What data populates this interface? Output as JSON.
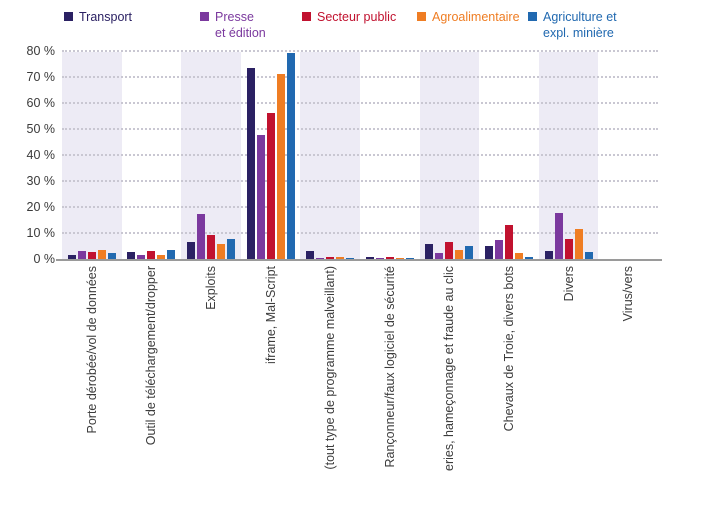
{
  "chart_data": {
    "type": "bar",
    "title": "",
    "xlabel": "",
    "ylabel": "",
    "ylim": [
      0,
      80
    ],
    "ytick_step": 10,
    "grid": "horizontal-dotted",
    "legend_position": "top",
    "stripe_color": "#edebf5",
    "categories": [
      "Porte dérobée/vol de données",
      "Outil de téléchargement/dropper",
      "Exploits",
      "iframe, Mal-Script",
      "(tout type de programme malveillant)",
      "Rançonneur/faux logiciel de sécurité",
      "eries, hameçonnage et fraude au clic",
      "Chevaux de Troie, divers bots",
      "Divers",
      "Virus/vers"
    ],
    "series": [
      {
        "name": "Transport",
        "label": "Transport",
        "color": "#2b2163",
        "values": [
          2,
          3,
          7,
          74,
          3.5,
          1,
          6,
          5.5,
          3.5,
          0.5
        ]
      },
      {
        "name": "Presse et édition",
        "label": "Presse\net édition",
        "color": "#7b399e",
        "values": [
          3.5,
          2,
          17.5,
          48,
          0.8,
          0.8,
          2.5,
          7.5,
          18,
          0.5
        ]
      },
      {
        "name": "Secteur public",
        "label": "Secteur public",
        "color": "#c1122f",
        "values": [
          3,
          3.5,
          9.5,
          56.5,
          1,
          1,
          7,
          13.5,
          8,
          0.5
        ]
      },
      {
        "name": "Agroalimentaire",
        "label": "Agroalimentaire",
        "color": "#ef7d23",
        "values": [
          4,
          2,
          6,
          71.5,
          1,
          0.8,
          4,
          2.5,
          12,
          0.5
        ]
      },
      {
        "name": "Agriculture et expl. minière",
        "label": "Agriculture et\nexpl. minière",
        "color": "#2169b0",
        "values": [
          2.5,
          4,
          8,
          79.5,
          0.8,
          0.8,
          5.5,
          1,
          3,
          0.5
        ]
      }
    ]
  },
  "y_axis": {
    "ticks": [
      "80 %",
      "70 %",
      "60 %",
      "50 %",
      "40 %",
      "30 %",
      "20 %",
      "10 %",
      "0 %"
    ]
  }
}
